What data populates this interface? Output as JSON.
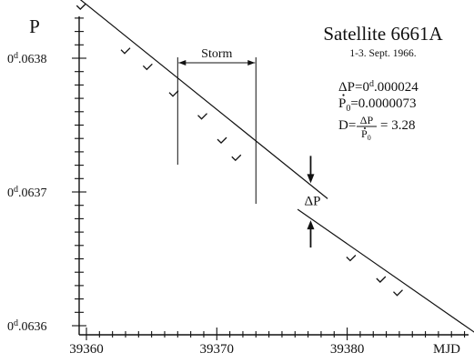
{
  "chart_data": {
    "type": "scatter",
    "title": "Satellite 6661A",
    "subtitle": "1-3. Sept. 1966.",
    "xlabel": "MJD",
    "ylabel": "P",
    "xlim": [
      39359,
      39391
    ],
    "ylim": [
      0.06359,
      0.06386
    ],
    "x_ticks": [
      39360,
      39370,
      39380
    ],
    "x_tick_labels": [
      "39360",
      "39370",
      "39380"
    ],
    "y_ticks": [
      0.0636,
      0.0637,
      0.0638
    ],
    "y_tick_labels": [
      {
        "base": "0",
        "sup": "d",
        "rest": ".0636"
      },
      {
        "base": "0",
        "sup": "d",
        "rest": ".0637"
      },
      {
        "base": "0",
        "sup": "d",
        "rest": ".0638"
      }
    ],
    "points": [
      {
        "x": 39359.6,
        "y": 0.063838
      },
      {
        "x": 39363.0,
        "y": 0.063805
      },
      {
        "x": 39364.7,
        "y": 0.063793
      },
      {
        "x": 39366.7,
        "y": 0.063773
      },
      {
        "x": 39368.9,
        "y": 0.063756
      },
      {
        "x": 39370.4,
        "y": 0.063738
      },
      {
        "x": 39371.5,
        "y": 0.063725
      },
      {
        "x": 39380.3,
        "y": 0.06365
      },
      {
        "x": 39382.6,
        "y": 0.063634
      },
      {
        "x": 39383.9,
        "y": 0.063624
      },
      {
        "x": 39390.1,
        "y": 0.063594
      }
    ],
    "fit_lines": [
      {
        "x": [
          39359,
          39378.5
        ],
        "y": [
          0.063848,
          0.063695
        ]
      },
      {
        "x": [
          39376.2,
          39390.8
        ],
        "y": [
          0.063687,
          0.063588
        ]
      }
    ],
    "storm": {
      "label": "Storm",
      "x_start": 39367,
      "x_end": 39373
    },
    "delta_label": "ΔP",
    "delta_at_x": 39377.2,
    "annotations": {
      "dp_line": {
        "lhs": "ΔP=",
        "base": "0",
        "sup": "d",
        "rest": ".000024"
      },
      "p0_line": {
        "var": "P",
        "sub": "0",
        "rest": "=0.0000073"
      },
      "d_line": {
        "lhs": "D=",
        "num": "ΔP",
        "den_var": "P",
        "den_sub": "0",
        "rhs": "= 3.28"
      }
    }
  }
}
